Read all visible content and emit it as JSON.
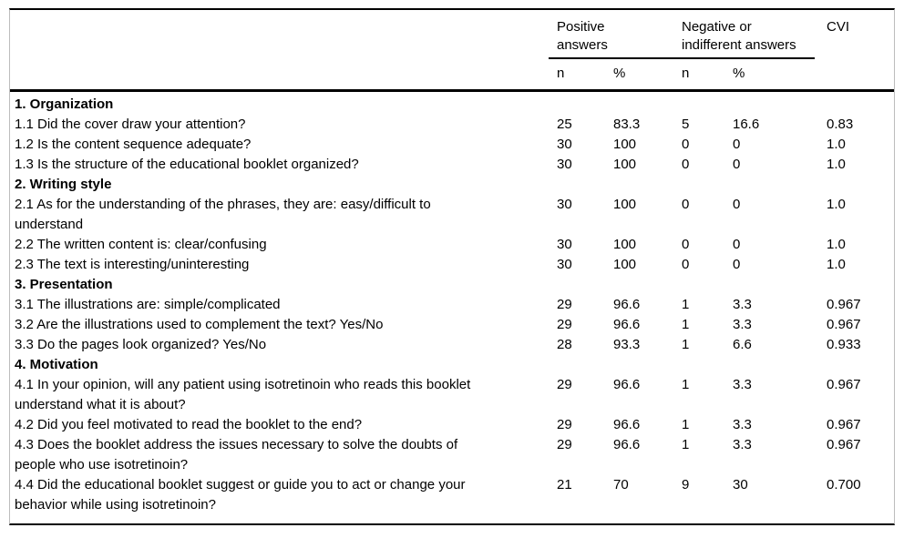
{
  "table": {
    "header": {
      "groups": [
        {
          "label": "Positive\nanswers"
        },
        {
          "label": "Negative or\nindifferent answers"
        },
        {
          "label": "CVI"
        }
      ],
      "sub": [
        "n",
        "%",
        "n",
        "%"
      ]
    },
    "rows": [
      {
        "type": "section",
        "label": "1. Organization"
      },
      {
        "type": "item",
        "question": "1.1 Did the cover draw your attention?",
        "n_pos": "25",
        "pct_pos": "83.3",
        "n_neg": "5",
        "pct_neg": "16.6",
        "cvi": "0.83"
      },
      {
        "type": "item",
        "question": "1.2 Is the content sequence adequate?",
        "n_pos": "30",
        "pct_pos": "100",
        "n_neg": "0",
        "pct_neg": "0",
        "cvi": "1.0"
      },
      {
        "type": "item",
        "question": "1.3 Is the structure of the educational booklet organized?",
        "n_pos": "30",
        "pct_pos": "100",
        "n_neg": "0",
        "pct_neg": "0",
        "cvi": "1.0"
      },
      {
        "type": "section",
        "label": "2. Writing style"
      },
      {
        "type": "item",
        "question": "2.1 As for the understanding of the phrases, they are: easy/difficult to\nunderstand",
        "n_pos": "30",
        "pct_pos": "100",
        "n_neg": "0",
        "pct_neg": "0",
        "cvi": "1.0"
      },
      {
        "type": "item",
        "question": "2.2 The written content is: clear/confusing",
        "n_pos": "30",
        "pct_pos": "100",
        "n_neg": "0",
        "pct_neg": "0",
        "cvi": "1.0"
      },
      {
        "type": "item",
        "question": "2.3 The text is interesting/uninteresting",
        "n_pos": "30",
        "pct_pos": "100",
        "n_neg": "0",
        "pct_neg": "0",
        "cvi": "1.0"
      },
      {
        "type": "section",
        "label": "3. Presentation"
      },
      {
        "type": "item",
        "question": "3.1 The illustrations are: simple/complicated",
        "n_pos": "29",
        "pct_pos": "96.6",
        "n_neg": "1",
        "pct_neg": "3.3",
        "cvi": "0.967"
      },
      {
        "type": "item",
        "question": "3.2 Are the illustrations used to complement the text? Yes/No",
        "n_pos": "29",
        "pct_pos": "96.6",
        "n_neg": "1",
        "pct_neg": "3.3",
        "cvi": "0.967"
      },
      {
        "type": "item",
        "question": "3.3 Do the pages look organized? Yes/No",
        "n_pos": "28",
        "pct_pos": "93.3",
        "n_neg": "1",
        "pct_neg": "6.6",
        "cvi": "0.933"
      },
      {
        "type": "section",
        "label": "4. Motivation"
      },
      {
        "type": "item",
        "question": "4.1 In your opinion, will any patient using isotretinoin who reads this booklet\nunderstand what it is about?",
        "n_pos": "29",
        "pct_pos": "96.6",
        "n_neg": "1",
        "pct_neg": "3.3",
        "cvi": "0.967"
      },
      {
        "type": "item",
        "question": "4.2 Did you feel motivated to read the booklet to the end?",
        "n_pos": "29",
        "pct_pos": "96.6",
        "n_neg": "1",
        "pct_neg": "3.3",
        "cvi": "0.967"
      },
      {
        "type": "item",
        "question": "4.3 Does the booklet address the issues necessary to solve the doubts of\npeople who use isotretinoin?",
        "n_pos": "29",
        "pct_pos": "96.6",
        "n_neg": "1",
        "pct_neg": "3.3",
        "cvi": "0.967"
      },
      {
        "type": "item",
        "question": "4.4 Did the educational booklet suggest or guide you to act or change your\nbehavior while using isotretinoin?",
        "n_pos": "21",
        "pct_pos": "70",
        "n_neg": "9",
        "pct_neg": "30",
        "cvi": "0.700"
      }
    ]
  },
  "colors": {
    "text": "#000000",
    "rule": "#000000",
    "frame": "#bdbdbd",
    "background": "#ffffff"
  }
}
